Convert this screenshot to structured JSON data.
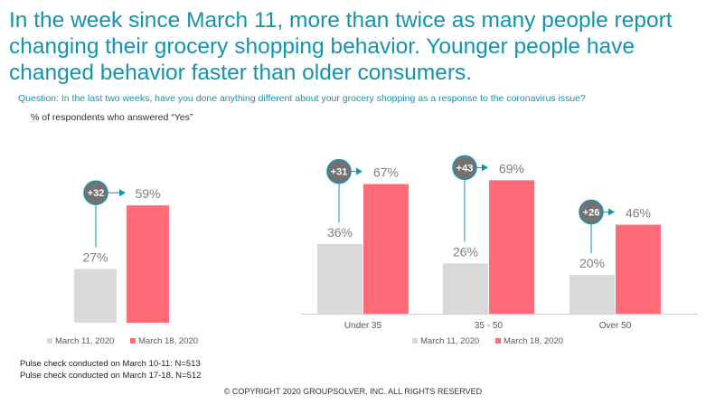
{
  "headline": "In the week since March 11, more than twice as many people report changing their grocery shopping behavior. Younger people have changed behavior faster than older consumers.",
  "question": "Question: In the last two weeks, have you done anything different about your grocery shopping as a response to the coronavirus issue?",
  "subtitle": "% of respondents who answered “Yes”",
  "colors": {
    "march11": "#d9d9d9",
    "march18": "#ff6b78",
    "accent": "#1493b0",
    "badge": "#767171"
  },
  "chart_data": [
    {
      "type": "bar",
      "categories": [
        ""
      ],
      "series": [
        {
          "name": "March 11, 2020",
          "values": [
            27
          ]
        },
        {
          "name": "March 18, 2020",
          "values": [
            59
          ]
        }
      ],
      "value_labels": {
        "March 11, 2020": [
          "27%"
        ],
        "March 18, 2020": [
          "59%"
        ]
      },
      "changes": [
        "+32"
      ],
      "ylim": [
        0,
        100
      ],
      "legend": [
        "March 11, 2020",
        "March 18, 2020"
      ],
      "legend_position": "bottom",
      "grid": false
    },
    {
      "type": "bar",
      "categories": [
        "Under 35",
        "35 - 50",
        "Over 50"
      ],
      "series": [
        {
          "name": "March 11, 2020",
          "values": [
            36,
            26,
            20
          ]
        },
        {
          "name": "March 18, 2020",
          "values": [
            67,
            69,
            46
          ]
        }
      ],
      "value_labels": {
        "March 11, 2020": [
          "36%",
          "26%",
          "20%"
        ],
        "March 18, 2020": [
          "67%",
          "69%",
          "46%"
        ]
      },
      "changes": [
        "+31",
        "+43",
        "+26"
      ],
      "ylim": [
        0,
        100
      ],
      "legend": [
        "March 11, 2020",
        "March 18, 2020"
      ],
      "legend_position": "bottom",
      "grid": false
    }
  ],
  "notes": [
    "Pulse check conducted on March 10-11: N=513",
    "Pulse check conducted on March 17-18, N=512"
  ],
  "copyright": "© COPYRIGHT 2020 GROUPSOLVER, INC. ALL RIGHTS RESERVED"
}
